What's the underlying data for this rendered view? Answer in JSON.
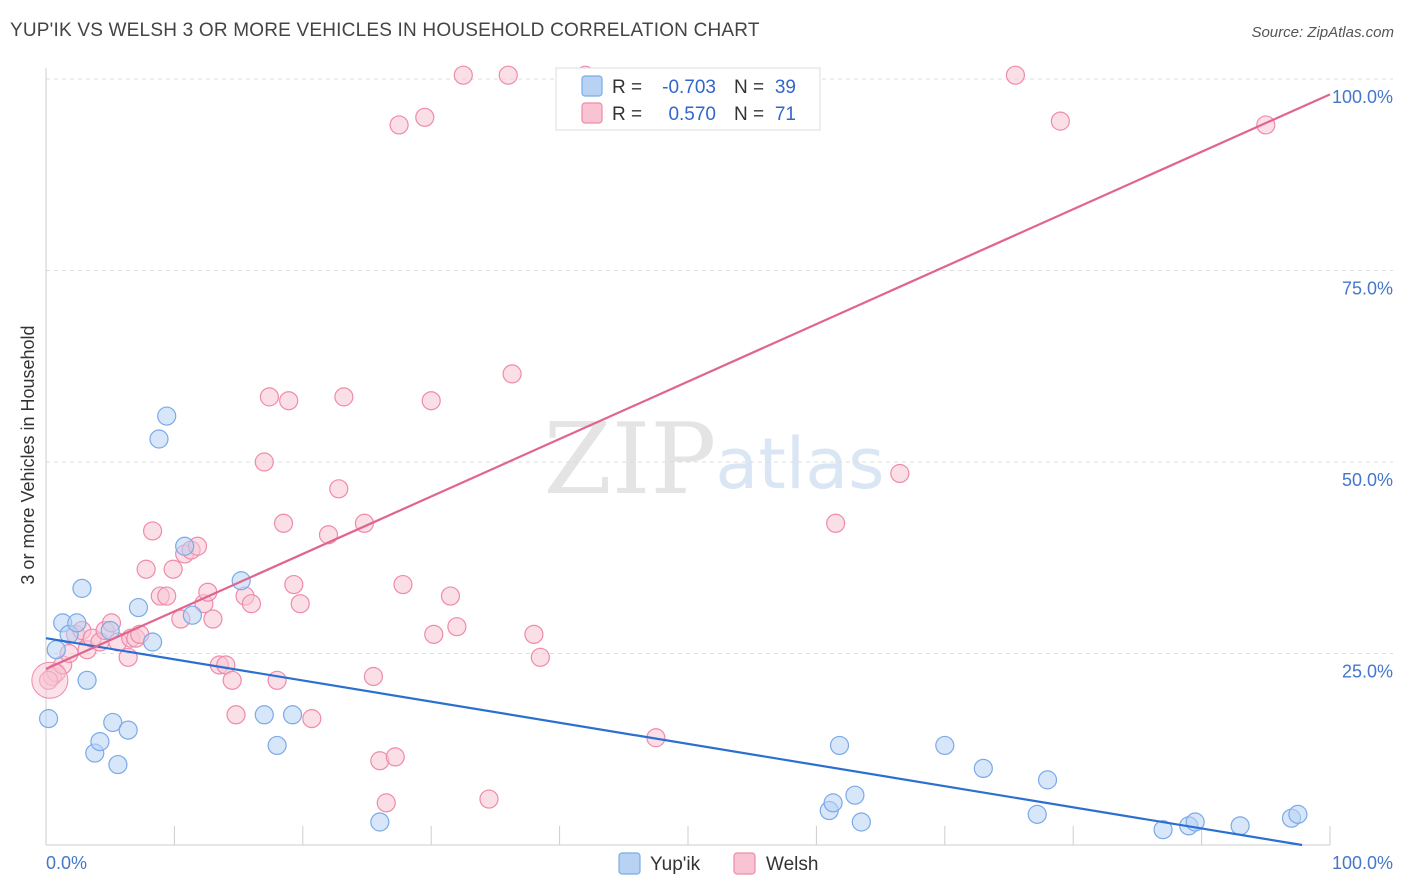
{
  "title": "YUP'IK VS WELSH 3 OR MORE VEHICLES IN HOUSEHOLD CORRELATION CHART",
  "source": "Source: ZipAtlas.com",
  "watermark": {
    "zip": "ZIP",
    "atlas": "atlas"
  },
  "colors": {
    "yupik": "#7aaae8",
    "yupik_fill": "#b8d2f4",
    "welsh": "#f08aaa",
    "welsh_fill": "#f8c4d4",
    "yupik_line": "#2b6fd1",
    "welsh_line": "#e0648e"
  },
  "legend_box": {
    "rows": [
      {
        "r_label": "R =",
        "r_value": "-0.703",
        "n_label": "N =",
        "n_value": "39"
      },
      {
        "r_label": "R =",
        "r_value": "0.570",
        "n_label": "N =",
        "n_value": "71"
      }
    ]
  },
  "bottom_legend": {
    "yupik": "Yup'ik",
    "welsh": "Welsh"
  },
  "chart_data": {
    "type": "scatter",
    "title": "YUP'IK VS WELSH 3 OR MORE VEHICLES IN HOUSEHOLD CORRELATION CHART",
    "xlabel": "",
    "ylabel": "3 or more Vehicles in Household",
    "xlim": [
      0,
      100
    ],
    "ylim": [
      0,
      100
    ],
    "x_tick_labels": {
      "left": "0.0%",
      "right": "100.0%"
    },
    "y_tick_labels": [
      "25.0%",
      "50.0%",
      "75.0%",
      "100.0%"
    ],
    "y_ticks": [
      25,
      50,
      75,
      100
    ],
    "series": [
      {
        "name": "Yup'ik",
        "r": -0.703,
        "n": 39,
        "trend": {
          "x0": 0,
          "y0": 27.0,
          "x1": 100,
          "y1": -0.6
        },
        "points": [
          [
            0.2,
            16.5
          ],
          [
            0.8,
            25.5
          ],
          [
            1.3,
            29
          ],
          [
            1.8,
            27.5
          ],
          [
            2.4,
            29
          ],
          [
            2.8,
            33.5
          ],
          [
            3.2,
            21.5
          ],
          [
            3.8,
            12
          ],
          [
            4.2,
            13.5
          ],
          [
            5.2,
            16
          ],
          [
            5.6,
            10.5
          ],
          [
            6.4,
            15
          ],
          [
            5.0,
            28
          ],
          [
            7.2,
            31
          ],
          [
            8.3,
            26.5
          ],
          [
            8.8,
            53
          ],
          [
            9.4,
            56
          ],
          [
            10.8,
            39
          ],
          [
            11.4,
            30
          ],
          [
            15.2,
            34.5
          ],
          [
            17.0,
            17
          ],
          [
            18.0,
            13
          ],
          [
            19.2,
            17
          ],
          [
            26.0,
            3
          ],
          [
            61.0,
            4.5
          ],
          [
            61.3,
            5.5
          ],
          [
            61.8,
            13
          ],
          [
            63.0,
            6.5
          ],
          [
            63.5,
            3
          ],
          [
            70.0,
            13
          ],
          [
            73.0,
            10
          ],
          [
            77.2,
            4
          ],
          [
            78.0,
            8.5
          ],
          [
            89.0,
            2.5
          ],
          [
            89.5,
            3
          ],
          [
            93.0,
            2.5
          ],
          [
            97.0,
            3.5
          ],
          [
            97.5,
            4
          ],
          [
            87.0,
            2.0
          ]
        ]
      },
      {
        "name": "Welsh",
        "r": 0.57,
        "n": 71,
        "trend": {
          "x0": 0,
          "y0": 23.0,
          "x1": 100,
          "y1": 98.0
        },
        "points": [
          [
            0.5,
            22
          ],
          [
            0.8,
            22.5
          ],
          [
            1.3,
            23.5
          ],
          [
            1.8,
            25
          ],
          [
            2.3,
            27.5
          ],
          [
            2.8,
            28
          ],
          [
            3.2,
            25.5
          ],
          [
            3.6,
            27
          ],
          [
            4.2,
            26.5
          ],
          [
            4.6,
            28
          ],
          [
            5.1,
            29
          ],
          [
            5.6,
            26.5
          ],
          [
            6.4,
            24.5
          ],
          [
            6.6,
            27
          ],
          [
            7.0,
            27
          ],
          [
            7.3,
            27.5
          ],
          [
            7.8,
            36
          ],
          [
            8.3,
            41
          ],
          [
            8.9,
            32.5
          ],
          [
            9.4,
            32.5
          ],
          [
            9.9,
            36
          ],
          [
            10.5,
            29.5
          ],
          [
            10.8,
            38
          ],
          [
            11.3,
            38.5
          ],
          [
            11.8,
            39
          ],
          [
            12.3,
            31.5
          ],
          [
            12.6,
            33
          ],
          [
            13.0,
            29.5
          ],
          [
            13.5,
            23.5
          ],
          [
            14.0,
            23.5
          ],
          [
            14.5,
            21.5
          ],
          [
            14.8,
            17
          ],
          [
            15.5,
            32.5
          ],
          [
            16.0,
            31.5
          ],
          [
            17.0,
            50
          ],
          [
            17.4,
            58.5
          ],
          [
            18.0,
            21.5
          ],
          [
            18.5,
            42
          ],
          [
            18.9,
            58
          ],
          [
            19.3,
            34
          ],
          [
            19.8,
            31.5
          ],
          [
            20.7,
            16.5
          ],
          [
            22.0,
            40.5
          ],
          [
            22.8,
            46.5
          ],
          [
            23.2,
            58.5
          ],
          [
            24.8,
            42
          ],
          [
            25.5,
            22
          ],
          [
            26.0,
            11
          ],
          [
            26.5,
            5.5
          ],
          [
            27.2,
            11.5
          ],
          [
            27.5,
            94
          ],
          [
            27.8,
            34
          ],
          [
            29.5,
            95
          ],
          [
            30.0,
            58
          ],
          [
            30.2,
            27.5
          ],
          [
            31.5,
            32.5
          ],
          [
            32.0,
            28.5
          ],
          [
            32.5,
            100.5
          ],
          [
            34.5,
            6
          ],
          [
            36.0,
            100.5
          ],
          [
            36.3,
            61.5
          ],
          [
            38.0,
            27.5
          ],
          [
            38.5,
            24.5
          ],
          [
            47.5,
            14
          ],
          [
            61.5,
            42
          ],
          [
            66.5,
            48.5
          ],
          [
            75.5,
            100.5
          ],
          [
            79.0,
            94.5
          ],
          [
            95.0,
            94
          ],
          [
            42.0,
            100.5
          ],
          [
            0.2,
            21.5
          ]
        ]
      }
    ]
  }
}
